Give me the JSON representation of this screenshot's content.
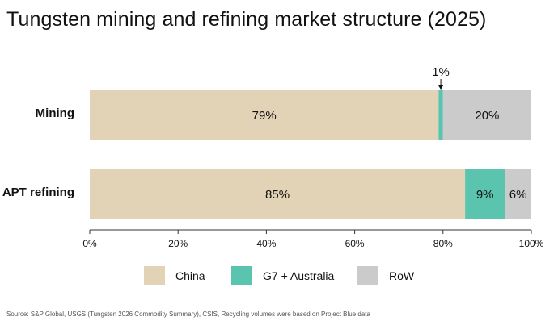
{
  "title": "Tungsten mining and refining market structure (2025)",
  "source": "Source: S&P Global, USGS (Tungsten 2026 Commodity Summary), CSIS, Recycling volumes were based on Project Blue data",
  "colors": {
    "China": "#e2d3b6",
    "G7 + Australia": "#5bc4ae",
    "RoW": "#cbcbcb",
    "axis": "#333333"
  },
  "chart_data": {
    "type": "bar",
    "orientation": "horizontal",
    "stacked": true,
    "categories": [
      "Mining",
      "APT refining"
    ],
    "series": [
      {
        "name": "China",
        "values": [
          79,
          85
        ],
        "labels": [
          "79%",
          "85%"
        ]
      },
      {
        "name": "G7 + Australia",
        "values": [
          1,
          9
        ],
        "labels": [
          "1%",
          "9%"
        ]
      },
      {
        "name": "RoW",
        "values": [
          20,
          6
        ],
        "labels": [
          "20%",
          "6%"
        ]
      }
    ],
    "xlim": [
      0,
      100
    ],
    "xticks": [
      "0%",
      "20%",
      "40%",
      "60%",
      "80%",
      "100%"
    ],
    "grid": false,
    "legend_position": "bottom"
  }
}
